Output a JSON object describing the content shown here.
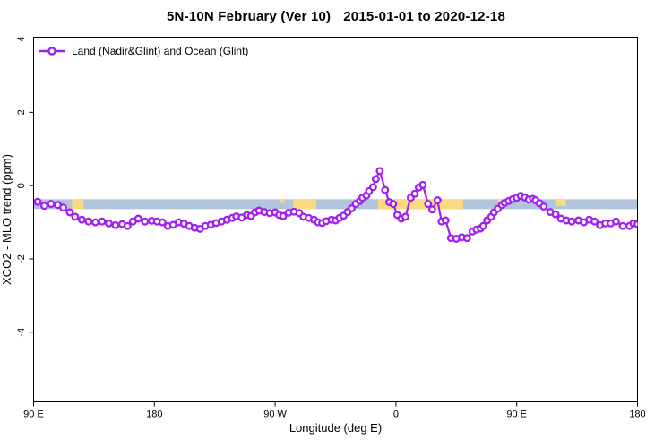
{
  "figure": {
    "title": {
      "region_period": "5N-10N February (Ver 10)",
      "date_range": "2015-01-01 to 2020-12-18"
    }
  },
  "chart_data": {
    "type": "line",
    "title": "5N-10N February (Ver 10)   2015-01-01 to 2020-12-18",
    "xlabel": "Longitude (deg E)",
    "ylabel": "XCO2 - MLO trend (ppm)",
    "xlim": [
      90,
      540
    ],
    "ylim": [
      -5.9,
      4.05
    ],
    "grid": false,
    "legend_position": "top-left",
    "x_ticks": [
      {
        "value": 90,
        "label": "90 E"
      },
      {
        "value": 180,
        "label": "180"
      },
      {
        "value": 270,
        "label": "90 W"
      },
      {
        "value": 360,
        "label": "0"
      },
      {
        "value": 450,
        "label": "90 E"
      },
      {
        "value": 540,
        "label": "180"
      }
    ],
    "y_ticks": [
      {
        "value": 4,
        "label": "4"
      },
      {
        "value": 2,
        "label": "2"
      },
      {
        "value": 0,
        "label": "0"
      },
      {
        "value": -2,
        "label": "-2"
      },
      {
        "value": -4,
        "label": "-4"
      }
    ],
    "bands": {
      "ocean_band": {
        "name": "ocean-glint-band",
        "color": "#B0C4DE",
        "x_range": [
          90,
          540
        ],
        "y_range": [
          -0.37,
          -0.64
        ]
      },
      "land_segments": {
        "color": "#FBD97F",
        "segments": [
          {
            "x_range": [
              118.7,
              127.3
            ],
            "coverage": 1.0
          },
          {
            "x_range": [
              273.0,
              277.0
            ],
            "coverage": 0.4
          },
          {
            "x_range": [
              283.3,
              300.7
            ],
            "coverage": 1.0
          },
          {
            "x_range": [
              346.7,
              410.0
            ],
            "coverage": 1.0
          },
          {
            "x_range": [
              436.0,
              438.5
            ],
            "coverage": 0.55
          },
          {
            "x_range": [
              440.5,
              442.5
            ],
            "coverage": 0.55
          },
          {
            "x_range": [
              463.5,
              465.5
            ],
            "coverage": 0.45
          },
          {
            "x_range": [
              478.7,
              486.7
            ],
            "coverage": 0.7
          }
        ]
      }
    },
    "series": [
      {
        "name": "Land (Nadir&Glint) and Ocean (Glint)",
        "color": "#A020F0",
        "marker": "open-circle",
        "points": [
          [
            87,
            -0.56
          ],
          [
            93,
            -0.44
          ],
          [
            98,
            -0.55
          ],
          [
            103,
            -0.5
          ],
          [
            108,
            -0.53
          ],
          [
            112,
            -0.6
          ],
          [
            117,
            -0.73
          ],
          [
            121,
            -0.85
          ],
          [
            126,
            -0.93
          ],
          [
            131,
            -0.98
          ],
          [
            136,
            -1.0
          ],
          [
            141,
            -0.98
          ],
          [
            146,
            -1.03
          ],
          [
            151,
            -1.08
          ],
          [
            156,
            -1.05
          ],
          [
            160,
            -1.1
          ],
          [
            164,
            -0.98
          ],
          [
            168,
            -0.9
          ],
          [
            173,
            -0.98
          ],
          [
            178,
            -0.96
          ],
          [
            182,
            -0.98
          ],
          [
            186,
            -1.0
          ],
          [
            190,
            -1.1
          ],
          [
            194,
            -1.07
          ],
          [
            198,
            -1.0
          ],
          [
            202,
            -1.04
          ],
          [
            206,
            -1.1
          ],
          [
            210,
            -1.15
          ],
          [
            214,
            -1.18
          ],
          [
            218,
            -1.1
          ],
          [
            222,
            -1.07
          ],
          [
            226,
            -1.02
          ],
          [
            230,
            -0.98
          ],
          [
            234,
            -0.93
          ],
          [
            238,
            -0.88
          ],
          [
            241,
            -0.84
          ],
          [
            245,
            -0.87
          ],
          [
            249,
            -0.8
          ],
          [
            252,
            -0.83
          ],
          [
            255,
            -0.73
          ],
          [
            258,
            -0.68
          ],
          [
            262,
            -0.72
          ],
          [
            266,
            -0.75
          ],
          [
            270,
            -0.73
          ],
          [
            273,
            -0.8
          ],
          [
            276,
            -0.83
          ],
          [
            280,
            -0.74
          ],
          [
            284,
            -0.71
          ],
          [
            288,
            -0.75
          ],
          [
            291,
            -0.85
          ],
          [
            295,
            -0.88
          ],
          [
            299,
            -0.93
          ],
          [
            302,
            -1.0
          ],
          [
            305,
            -1.02
          ],
          [
            308,
            -0.97
          ],
          [
            312,
            -0.93
          ],
          [
            315,
            -0.95
          ],
          [
            318,
            -0.88
          ],
          [
            321,
            -0.82
          ],
          [
            324,
            -0.72
          ],
          [
            327,
            -0.62
          ],
          [
            330,
            -0.5
          ],
          [
            333,
            -0.42
          ],
          [
            335,
            -0.33
          ],
          [
            338,
            -0.27
          ],
          [
            340,
            -0.15
          ],
          [
            343,
            -0.04
          ],
          [
            345,
            0.18
          ],
          [
            348,
            0.4
          ],
          [
            352,
            -0.12
          ],
          [
            355,
            -0.45
          ],
          [
            358,
            -0.5
          ],
          [
            361,
            -0.8
          ],
          [
            364,
            -0.9
          ],
          [
            367,
            -0.85
          ],
          [
            371,
            -0.33
          ],
          [
            374,
            -0.22
          ],
          [
            377,
            -0.05
          ],
          [
            380,
            0.02
          ],
          [
            384,
            -0.5
          ],
          [
            387,
            -0.65
          ],
          [
            391,
            -0.4
          ],
          [
            394,
            -0.98
          ],
          [
            397,
            -0.95
          ],
          [
            401,
            -1.43
          ],
          [
            405,
            -1.45
          ],
          [
            409,
            -1.41
          ],
          [
            413,
            -1.43
          ],
          [
            417,
            -1.25
          ],
          [
            420,
            -1.2
          ],
          [
            423,
            -1.17
          ],
          [
            425,
            -1.1
          ],
          [
            428,
            -0.95
          ],
          [
            431,
            -0.85
          ],
          [
            433,
            -0.73
          ],
          [
            436,
            -0.63
          ],
          [
            439,
            -0.53
          ],
          [
            441,
            -0.47
          ],
          [
            444,
            -0.42
          ],
          [
            447,
            -0.37
          ],
          [
            450,
            -0.33
          ],
          [
            453,
            -0.28
          ],
          [
            456,
            -0.32
          ],
          [
            459,
            -0.38
          ],
          [
            462,
            -0.36
          ],
          [
            464,
            -0.4
          ],
          [
            467,
            -0.48
          ],
          [
            470,
            -0.57
          ],
          [
            475,
            -0.72
          ],
          [
            479,
            -0.78
          ],
          [
            483,
            -0.9
          ],
          [
            487,
            -0.95
          ],
          [
            491,
            -0.98
          ],
          [
            496,
            -0.95
          ],
          [
            500,
            -1.0
          ],
          [
            504,
            -0.93
          ],
          [
            508,
            -0.98
          ],
          [
            512,
            -1.08
          ],
          [
            516,
            -1.03
          ],
          [
            520,
            -1.03
          ],
          [
            524,
            -0.98
          ],
          [
            529,
            -1.1
          ],
          [
            534,
            -1.1
          ],
          [
            537,
            -1.03
          ],
          [
            540,
            -1.05
          ]
        ]
      }
    ]
  }
}
